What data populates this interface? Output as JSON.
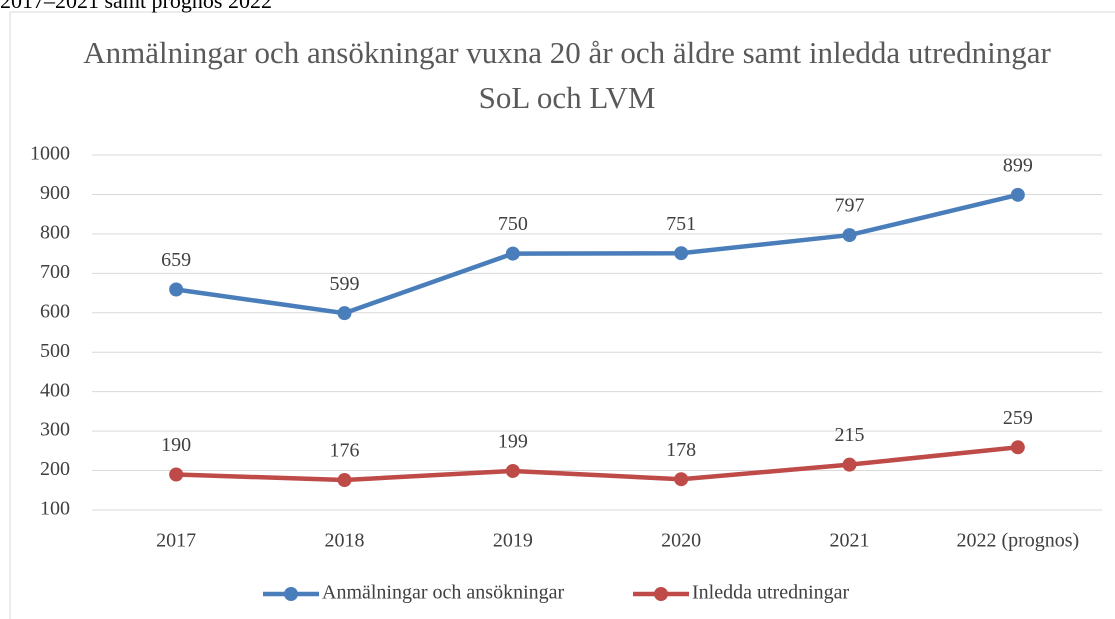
{
  "caption": "2017–2021 samt prognos 2022",
  "chart_data": {
    "type": "line",
    "title": "Anmälningar och ansökningar vuxna 20 år och äldre samt inledda utredningar SoL och LVM",
    "categories": [
      "2017",
      "2018",
      "2019",
      "2020",
      "2021",
      "2022 (prognos)"
    ],
    "series": [
      {
        "name": "Anmälningar och ansökningar",
        "color": "#4a7ebb",
        "values": [
          659,
          599,
          750,
          751,
          797,
          899
        ]
      },
      {
        "name": "Inledda utredningar",
        "color": "#be4b48",
        "values": [
          190,
          176,
          199,
          178,
          215,
          259
        ]
      }
    ],
    "ylim": [
      100,
      1000
    ],
    "yticks": [
      100,
      200,
      300,
      400,
      500,
      600,
      700,
      800,
      900,
      1000
    ],
    "grid": true,
    "legend": "bottom"
  }
}
